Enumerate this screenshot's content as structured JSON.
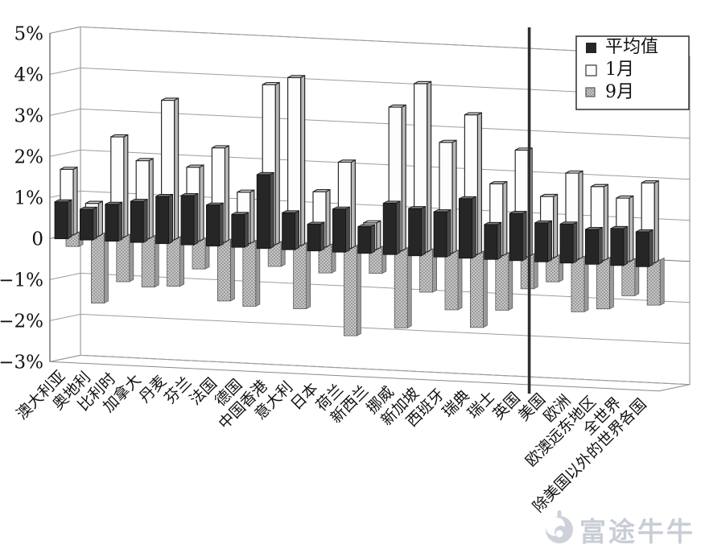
{
  "page": {
    "background": "#ffffff"
  },
  "watermark": {
    "text": "富途牛牛",
    "color": "#c9cdd5",
    "logo": "futu-bull-logo"
  },
  "chart_data": {
    "type": "bar",
    "projection": "3d",
    "title": "",
    "xlabel": "",
    "ylabel": "",
    "unit": "percent",
    "ylim": [
      -3,
      5
    ],
    "yticks": [
      5,
      4,
      3,
      2,
      1,
      0,
      -1,
      -2,
      -3
    ],
    "ytick_labels": [
      "5%",
      "4%",
      "3%",
      "2%",
      "1%",
      "0",
      "−1%",
      "−2%",
      "−3%"
    ],
    "grid": true,
    "legend_position": "top-right",
    "divider_after_category": "英国",
    "categories": [
      "澳大利亚",
      "奥地利",
      "比利时",
      "加拿大",
      "丹麦",
      "芬兰",
      "法国",
      "德国",
      "中国香港",
      "意大利",
      "日本",
      "荷兰",
      "新西兰",
      "挪威",
      "新加坡",
      "西班牙",
      "瑞典",
      "瑞士",
      "英国",
      "美国",
      "欧洲",
      "欧澳远东地区",
      "全世界",
      "除美国以外的世界各国"
    ],
    "series": [
      {
        "name": "平均值",
        "key": "avg",
        "color": "#262626",
        "fill_style": "solid",
        "values": [
          0.9,
          0.75,
          0.9,
          1.0,
          1.15,
          1.2,
          1.0,
          0.8,
          1.8,
          0.9,
          0.65,
          1.05,
          0.65,
          1.25,
          1.15,
          1.1,
          1.45,
          0.85,
          1.15,
          0.95,
          0.95,
          0.85,
          0.9,
          0.85
        ]
      },
      {
        "name": "1月",
        "key": "jan",
        "color": "#fdfdfd",
        "fill_style": "outlined-white",
        "values": [
          1.6,
          0.8,
          2.45,
          1.9,
          3.4,
          1.8,
          2.3,
          1.25,
          3.9,
          4.1,
          1.35,
          2.1,
          0.65,
          3.5,
          4.1,
          2.7,
          3.4,
          1.75,
          2.6,
          1.5,
          2.1,
          1.8,
          1.55,
          1.95
        ]
      },
      {
        "name": "9月",
        "key": "sep",
        "color": "#bdbdbd",
        "fill_style": "dotted-gray",
        "values": [
          -0.35,
          -1.7,
          -1.15,
          -1.25,
          -1.2,
          -0.75,
          -1.5,
          -1.6,
          -0.6,
          -1.6,
          -0.7,
          -2.2,
          -0.65,
          -1.95,
          -1.05,
          -1.45,
          -1.85,
          -1.4,
          -0.85,
          -0.65,
          -1.35,
          -1.25,
          -0.9,
          -1.1
        ]
      }
    ]
  }
}
